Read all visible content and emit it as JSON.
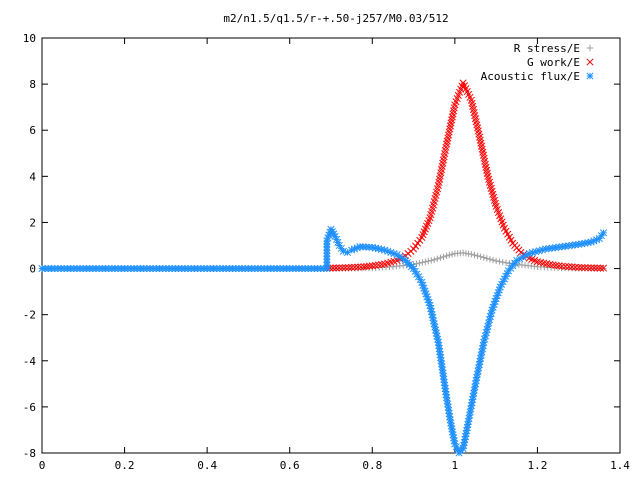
{
  "chart_data": {
    "type": "scatter",
    "title": "m2/n1.5/q1.5/r-+.50-j257/M0.03/512",
    "xlim": [
      0,
      1.4
    ],
    "ylim": [
      -8,
      10
    ],
    "xticks": [
      0,
      0.2,
      0.4,
      0.6,
      0.8,
      1,
      1.2,
      1.4
    ],
    "xtick_labels": [
      "0",
      "0.2",
      "0.4",
      "0.6",
      "0.8",
      "1",
      "1.2",
      "1.4"
    ],
    "yticks": [
      -8,
      -6,
      -4,
      -2,
      0,
      2,
      4,
      6,
      8,
      10
    ],
    "ytick_labels": [
      "-8",
      "-6",
      "-4",
      "-2",
      "0",
      "2",
      "4",
      "6",
      "8",
      "10"
    ],
    "grid": false,
    "legend_position": "top-right",
    "series": [
      {
        "name": "R stress/E",
        "marker": "+",
        "color": "#a0a0a0",
        "points": [
          [
            0.69,
            0.0
          ],
          [
            0.75,
            0.01
          ],
          [
            0.8,
            0.03
          ],
          [
            0.85,
            0.08
          ],
          [
            0.9,
            0.18
          ],
          [
            0.95,
            0.38
          ],
          [
            0.98,
            0.55
          ],
          [
            1.0,
            0.65
          ],
          [
            1.02,
            0.68
          ],
          [
            1.04,
            0.62
          ],
          [
            1.07,
            0.48
          ],
          [
            1.1,
            0.33
          ],
          [
            1.14,
            0.2
          ],
          [
            1.2,
            0.08
          ],
          [
            1.25,
            0.03
          ],
          [
            1.3,
            0.01
          ],
          [
            1.36,
            0.0
          ]
        ]
      },
      {
        "name": "G work/E",
        "marker": "x",
        "color": "#ff0000",
        "points": [
          [
            0.69,
            0.02
          ],
          [
            0.72,
            0.03
          ],
          [
            0.75,
            0.05
          ],
          [
            0.78,
            0.08
          ],
          [
            0.8,
            0.12
          ],
          [
            0.83,
            0.2
          ],
          [
            0.86,
            0.35
          ],
          [
            0.88,
            0.55
          ],
          [
            0.9,
            0.85
          ],
          [
            0.92,
            1.35
          ],
          [
            0.94,
            2.2
          ],
          [
            0.96,
            3.6
          ],
          [
            0.98,
            5.4
          ],
          [
            1.0,
            7.1
          ],
          [
            1.02,
            8.05
          ],
          [
            1.04,
            7.3
          ],
          [
            1.06,
            5.7
          ],
          [
            1.08,
            4.0
          ],
          [
            1.1,
            2.7
          ],
          [
            1.12,
            1.75
          ],
          [
            1.14,
            1.1
          ],
          [
            1.16,
            0.7
          ],
          [
            1.18,
            0.45
          ],
          [
            1.2,
            0.3
          ],
          [
            1.23,
            0.18
          ],
          [
            1.26,
            0.1
          ],
          [
            1.3,
            0.05
          ],
          [
            1.33,
            0.03
          ],
          [
            1.36,
            0.02
          ]
        ]
      },
      {
        "name": "Acoustic flux/E",
        "marker": "*",
        "color": "#1e90ff",
        "points": [
          [
            0.0,
            0.0
          ],
          [
            0.1,
            0.0
          ],
          [
            0.2,
            0.0
          ],
          [
            0.3,
            0.0
          ],
          [
            0.4,
            0.0
          ],
          [
            0.5,
            0.0
          ],
          [
            0.6,
            0.0
          ],
          [
            0.69,
            0.0
          ],
          [
            0.69,
            1.2
          ],
          [
            0.7,
            1.7
          ],
          [
            0.71,
            1.4
          ],
          [
            0.72,
            1.0
          ],
          [
            0.73,
            0.75
          ],
          [
            0.74,
            0.7
          ],
          [
            0.75,
            0.8
          ],
          [
            0.77,
            0.95
          ],
          [
            0.8,
            0.92
          ],
          [
            0.83,
            0.8
          ],
          [
            0.86,
            0.6
          ],
          [
            0.88,
            0.35
          ],
          [
            0.9,
            0.0
          ],
          [
            0.92,
            -0.6
          ],
          [
            0.94,
            -1.6
          ],
          [
            0.96,
            -3.2
          ],
          [
            0.97,
            -4.4
          ],
          [
            0.98,
            -5.6
          ],
          [
            0.99,
            -6.7
          ],
          [
            1.0,
            -7.6
          ],
          [
            1.01,
            -8.0
          ],
          [
            1.02,
            -7.8
          ],
          [
            1.03,
            -6.9
          ],
          [
            1.05,
            -5.0
          ],
          [
            1.07,
            -3.2
          ],
          [
            1.09,
            -1.8
          ],
          [
            1.11,
            -0.8
          ],
          [
            1.13,
            -0.1
          ],
          [
            1.15,
            0.35
          ],
          [
            1.18,
            0.65
          ],
          [
            1.22,
            0.85
          ],
          [
            1.26,
            0.95
          ],
          [
            1.3,
            1.05
          ],
          [
            1.33,
            1.15
          ],
          [
            1.35,
            1.3
          ],
          [
            1.36,
            1.55
          ]
        ]
      }
    ]
  }
}
